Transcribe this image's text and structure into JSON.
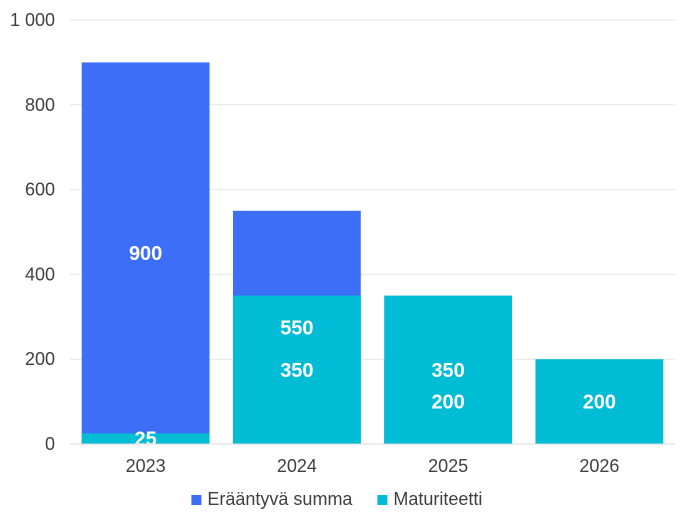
{
  "chart_data": {
    "type": "bar",
    "stacked": true,
    "categories": [
      "2023",
      "2024",
      "2025",
      "2026"
    ],
    "series": [
      {
        "name": "Erääntyvä summa",
        "values": [
          900,
          550,
          200,
          0
        ],
        "color": "#3d6ef7"
      },
      {
        "name": "Maturiteetti",
        "values": [
          25,
          350,
          350,
          200
        ],
        "color": "#00bcd4"
      }
    ],
    "y_tick_labels": [
      "0",
      "200",
      "400",
      "600",
      "800",
      "1 000"
    ],
    "y_ticks": [
      0,
      200,
      400,
      600,
      800,
      1000
    ],
    "ylim": [
      0,
      1000
    ],
    "grid": true,
    "legend_position": "bottom"
  }
}
